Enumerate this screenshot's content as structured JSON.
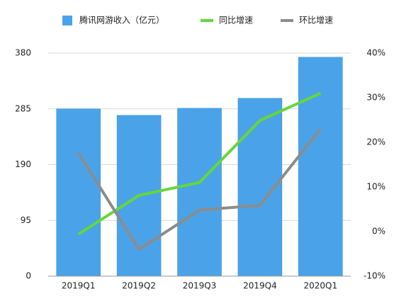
{
  "chart_data": {
    "type": "bar_line",
    "categories": [
      "2019Q1",
      "2019Q2",
      "2019Q3",
      "2019Q4",
      "2020Q1"
    ],
    "series": [
      {
        "name": "腾讯网游收入（亿元）",
        "type": "bar",
        "color": "#4aa3e8",
        "values": [
          285,
          274,
          286,
          303,
          373
        ]
      },
      {
        "name": "同比增速",
        "type": "line",
        "axis": "y2",
        "color": "#66d63a",
        "values": [
          -0.6,
          8.1,
          11,
          24.9,
          31
        ]
      },
      {
        "name": "环比增速",
        "type": "line",
        "axis": "y2",
        "color": "#8c8c8c",
        "values": [
          17.6,
          -4,
          4.8,
          5.9,
          23
        ]
      }
    ],
    "ylim": [
      0,
      380
    ],
    "yticks": [
      0,
      95,
      190,
      285,
      380
    ],
    "y2lim": [
      -10,
      40
    ],
    "y2ticks": [
      {
        "value": -10,
        "label": "-10%"
      },
      {
        "value": 0,
        "label": "0%"
      },
      {
        "value": 10,
        "label": "10%"
      },
      {
        "value": 20,
        "label": "20%"
      },
      {
        "value": 30,
        "label": "30%"
      },
      {
        "value": 40,
        "label": "40%"
      }
    ],
    "grid": true
  }
}
